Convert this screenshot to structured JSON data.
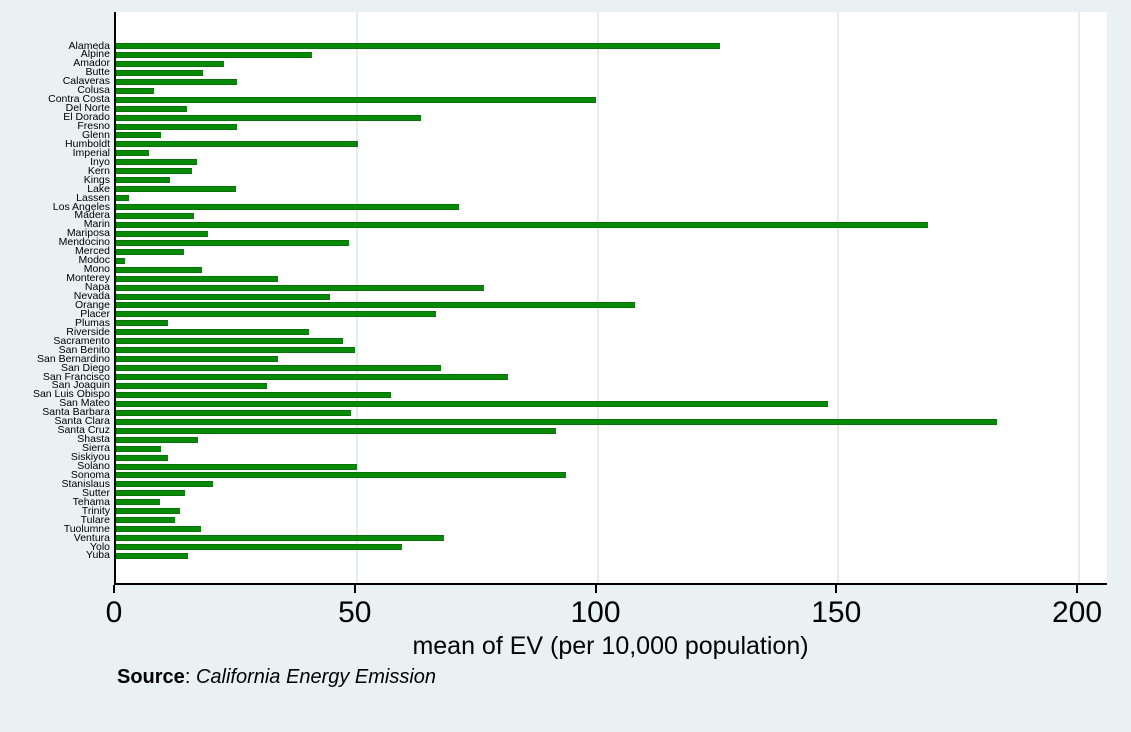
{
  "chart_data": {
    "type": "bar",
    "orientation": "horizontal",
    "title": "",
    "xlabel": "mean of EV (per 10,000 population)",
    "ylabel": "",
    "xlim": [
      0,
      206
    ],
    "xticks": [
      0,
      50,
      100,
      150,
      200
    ],
    "grid": "vertical-gridlines-on",
    "legend": "none",
    "categories": [
      "Alameda",
      "Alpine",
      "Amador",
      "Butte",
      "Calaveras",
      "Colusa",
      "Contra Costa",
      "Del Norte",
      "El Dorado",
      "Fresno",
      "Glenn",
      "Humboldt",
      "Imperial",
      "Inyo",
      "Kern",
      "Kings",
      "Lake",
      "Lassen",
      "Los Angeles",
      "Madera",
      "Marin",
      "Mariposa",
      "Mendocino",
      "Merced",
      "Modoc",
      "Mono",
      "Monterey",
      "Napa",
      "Nevada",
      "Orange",
      "Placer",
      "Plumas",
      "Riverside",
      "Sacramento",
      "San Benito",
      "San Bernardino",
      "San Diego",
      "San Francisco",
      "San Joaquin",
      "San Luis Obispo",
      "San Mateo",
      "Santa Barbara",
      "Santa Clara",
      "Santa Cruz",
      "Shasta",
      "Sierra",
      "Siskiyou",
      "Solano",
      "Sonoma",
      "Stanislaus",
      "Sutter",
      "Tehama",
      "Trinity",
      "Tulare",
      "Tuolumne",
      "Ventura",
      "Yolo",
      "Yuba"
    ],
    "values": [
      125.5,
      40.8,
      22.4,
      18.1,
      25.1,
      7.9,
      99.6,
      14.7,
      63.4,
      25.1,
      9.4,
      50.3,
      6.8,
      16.9,
      15.7,
      11.2,
      25.0,
      2.6,
      71.3,
      16.2,
      168.6,
      19.2,
      48.4,
      14.2,
      1.9,
      17.9,
      33.6,
      76.4,
      44.5,
      107.8,
      66.5,
      10.7,
      40.0,
      47.1,
      49.7,
      33.7,
      67.6,
      81.4,
      31.3,
      57.2,
      147.9,
      48.8,
      183.0,
      91.4,
      17.0,
      9.4,
      10.7,
      50.1,
      93.5,
      20.1,
      14.4,
      9.1,
      13.3,
      12.3,
      17.7,
      68.2,
      59.5,
      14.9
    ]
  },
  "source_note": {
    "prefix": "Source",
    "separator": ": ",
    "text": "California Energy Emission"
  },
  "colors": {
    "background": "#eaf1f3",
    "plot_background": "#ffffff",
    "bar_fill": "#088a08",
    "bar_edge": "#077307",
    "gridline": "#e2edef",
    "axis": "#000000"
  }
}
